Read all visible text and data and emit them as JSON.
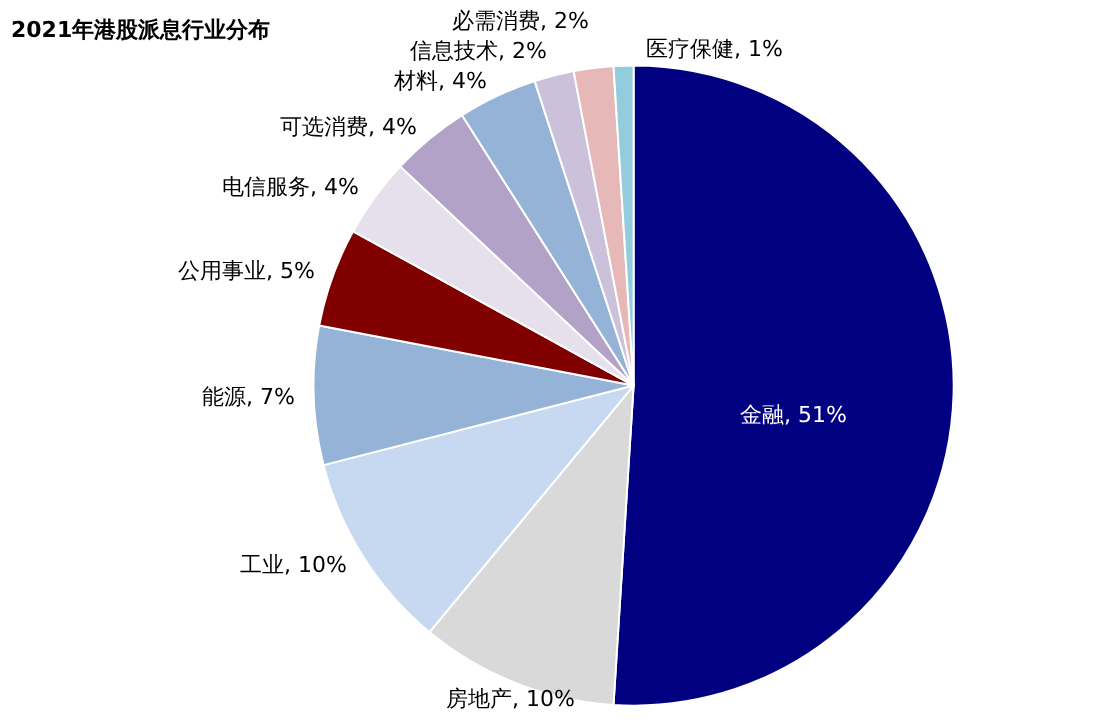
{
  "chart_data": {
    "type": "pie",
    "title": "2021年港股派息行业分布",
    "categories": [
      "金融",
      "房地产",
      "工业",
      "能源",
      "公用事业",
      "电信服务",
      "可选消费",
      "材料",
      "信息技术",
      "必需消费",
      "医疗保健"
    ],
    "values": [
      51,
      10,
      10,
      7,
      5,
      4,
      4,
      4,
      2,
      2,
      1
    ],
    "value_labels": [
      "51%",
      "10%",
      "10%",
      "7%",
      "5%",
      "4%",
      "4%",
      "4%",
      "2%",
      "2%",
      "1%"
    ],
    "colors": [
      "#000080",
      "#d9d9d9",
      "#c6d9f1",
      "#95b3d7",
      "#800000",
      "#e6e0ec",
      "#b3a2c7",
      "#95b3d7",
      "#ccc1da",
      "#e6b9b8",
      "#93cddd"
    ]
  }
}
